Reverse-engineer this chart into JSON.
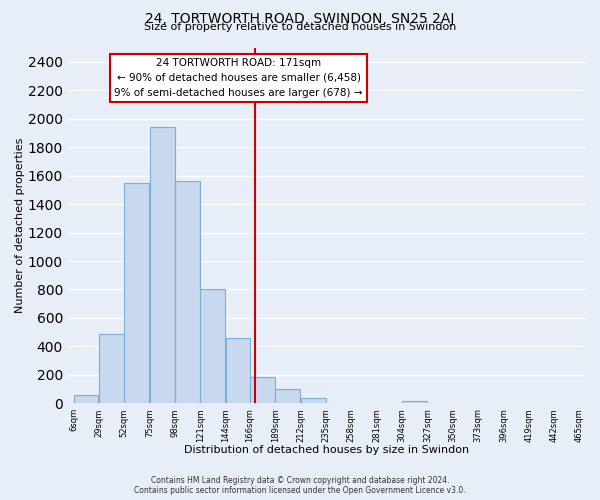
{
  "title": "24, TORTWORTH ROAD, SWINDON, SN25 2AJ",
  "subtitle": "Size of property relative to detached houses in Swindon",
  "xlabel": "Distribution of detached houses by size in Swindon",
  "ylabel": "Number of detached properties",
  "bar_color": "#c8d8ee",
  "bar_edge_color": "#7bafd4",
  "background_color": "#e8eef8",
  "grid_color": "white",
  "bin_edges": [
    6,
    29,
    52,
    75,
    98,
    121,
    144,
    166,
    189,
    212,
    235,
    258,
    281,
    304,
    327,
    350,
    373,
    396,
    419,
    442,
    465
  ],
  "bin_labels": [
    "6sqm",
    "29sqm",
    "52sqm",
    "75sqm",
    "98sqm",
    "121sqm",
    "144sqm",
    "166sqm",
    "189sqm",
    "212sqm",
    "235sqm",
    "258sqm",
    "281sqm",
    "304sqm",
    "327sqm",
    "350sqm",
    "373sqm",
    "396sqm",
    "419sqm",
    "442sqm",
    "465sqm"
  ],
  "bar_heights": [
    60,
    490,
    1550,
    1940,
    1560,
    800,
    460,
    185,
    100,
    35,
    0,
    0,
    0,
    20,
    0,
    0,
    0,
    0,
    0,
    0
  ],
  "vline_x": 171,
  "vline_color": "#cc0000",
  "annotation_title": "24 TORTWORTH ROAD: 171sqm",
  "annotation_line1": "← 90% of detached houses are smaller (6,458)",
  "annotation_line2": "9% of semi-detached houses are larger (678) →",
  "ylim": [
    0,
    2500
  ],
  "yticks": [
    0,
    200,
    400,
    600,
    800,
    1000,
    1200,
    1400,
    1600,
    1800,
    2000,
    2200,
    2400
  ],
  "footer_line1": "Contains HM Land Registry data © Crown copyright and database right 2024.",
  "footer_line2": "Contains public sector information licensed under the Open Government Licence v3.0."
}
